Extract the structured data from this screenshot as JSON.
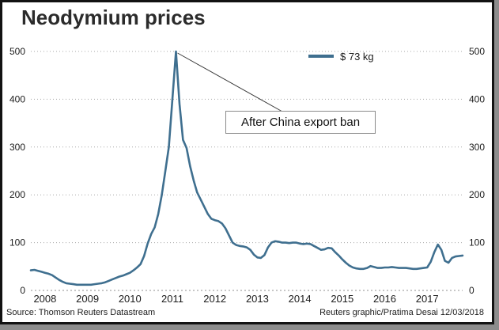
{
  "window": {
    "outer_bg_color": "#8c8c8c",
    "frame_border_color": "#121212"
  },
  "header": {
    "title": "Neodymium prices"
  },
  "legend": {
    "label": "$ 73 kg"
  },
  "annotation": {
    "label": "After China export ban"
  },
  "footer": {
    "source": "Source: Thomson Reuters Datastream",
    "credit": "Reuters graphic/Pratima Desai 12/03/2018"
  },
  "chart_data": {
    "type": "line",
    "title": "Neodymium prices",
    "legend": [
      "$ 73 kg"
    ],
    "legend_position": "top-center",
    "grid": "dotted horizontal",
    "ylim": [
      0,
      500
    ],
    "y_ticks": [
      0,
      100,
      200,
      300,
      400,
      500
    ],
    "y_axis_sides": "both",
    "x_tick_labels": [
      "2008",
      "2009",
      "2010",
      "2011",
      "2012",
      "2013",
      "2014",
      "2015",
      "2016",
      "2017"
    ],
    "frequency": "monthly",
    "latest_value": 73,
    "series": [
      {
        "name": "$ 73 kg",
        "color": "#3f6f8f",
        "values": [
          42,
          43,
          41,
          39,
          37,
          35,
          32,
          27,
          22,
          18,
          15,
          14,
          13,
          12,
          12,
          12,
          12,
          12,
          13,
          14,
          15,
          17,
          20,
          23,
          26,
          29,
          31,
          34,
          37,
          42,
          48,
          55,
          72,
          98,
          118,
          132,
          160,
          200,
          250,
          300,
          400,
          500,
          390,
          315,
          298,
          260,
          230,
          205,
          190,
          175,
          160,
          150,
          147,
          145,
          140,
          130,
          115,
          100,
          95,
          93,
          92,
          90,
          85,
          75,
          69,
          68,
          74,
          90,
          100,
          103,
          102,
          100,
          100,
          99,
          100,
          100,
          98,
          97,
          98,
          97,
          93,
          89,
          85,
          86,
          89,
          88,
          80,
          73,
          65,
          58,
          52,
          48,
          46,
          45,
          45,
          47,
          51,
          49,
          47,
          47,
          48,
          48,
          49,
          48,
          47,
          47,
          47,
          46,
          45,
          45,
          46,
          47,
          48,
          60,
          80,
          96,
          85,
          62,
          58,
          68,
          71,
          72,
          73
        ]
      }
    ],
    "annotations": [
      {
        "text": "After China export ban",
        "points_to_value": 500
      }
    ]
  }
}
